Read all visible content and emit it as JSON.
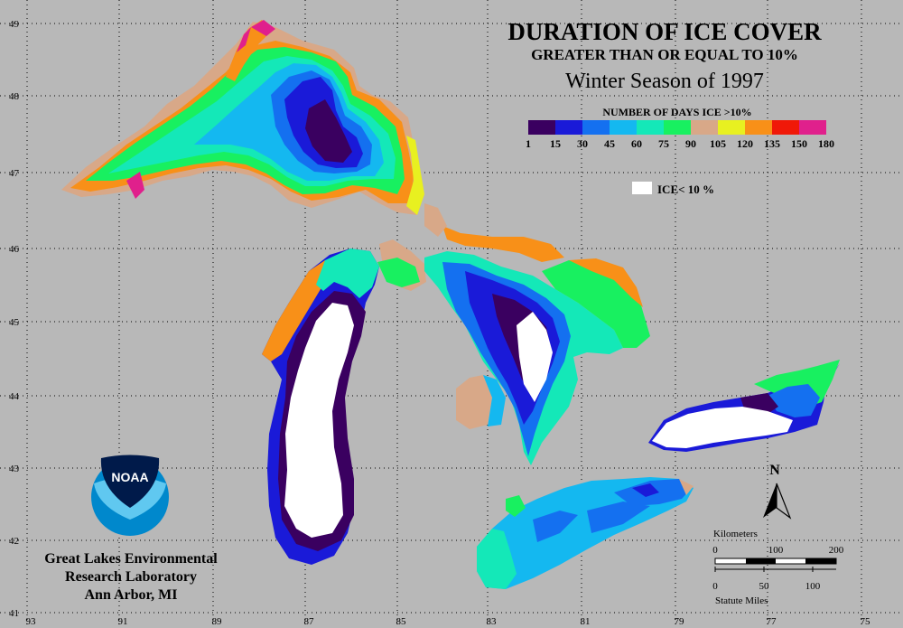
{
  "title": {
    "line1": "DURATION OF ICE COVER",
    "line2": "GREATER THAN OR EQUAL TO 10%",
    "line3": "Winter Season of 1997"
  },
  "legend": {
    "heading": "NUMBER OF DAYS ICE >10%",
    "colors": [
      "#3a0060",
      "#1a1ad8",
      "#1470f0",
      "#14b8f0",
      "#14e8b8",
      "#18f060",
      "#d8a888",
      "#e8f020",
      "#f89018",
      "#f01808",
      "#e0208c"
    ],
    "ticks": [
      "1",
      "15",
      "30",
      "45",
      "60",
      "75",
      "90",
      "105",
      "120",
      "135",
      "150",
      "180"
    ],
    "ice_label": "ICE< 10 %"
  },
  "lat_labels": [
    "49",
    "48",
    "47",
    "46",
    "45",
    "44",
    "43",
    "42",
    "41"
  ],
  "lon_labels": [
    "93",
    "91",
    "89",
    "87",
    "85",
    "83",
    "81",
    "79",
    "77",
    "75"
  ],
  "agency": {
    "logo_text": "NOAA",
    "line1": "Great Lakes Environmental",
    "line2": "Research Laboratory",
    "line3": "Ann Arbor, MI"
  },
  "north_label": "N",
  "scale": {
    "km_label": "Kilometers",
    "km_ticks": [
      "0",
      "100",
      "200"
    ],
    "mi_ticks": [
      "0",
      "50",
      "100"
    ],
    "mi_label": "Statute Miles"
  }
}
